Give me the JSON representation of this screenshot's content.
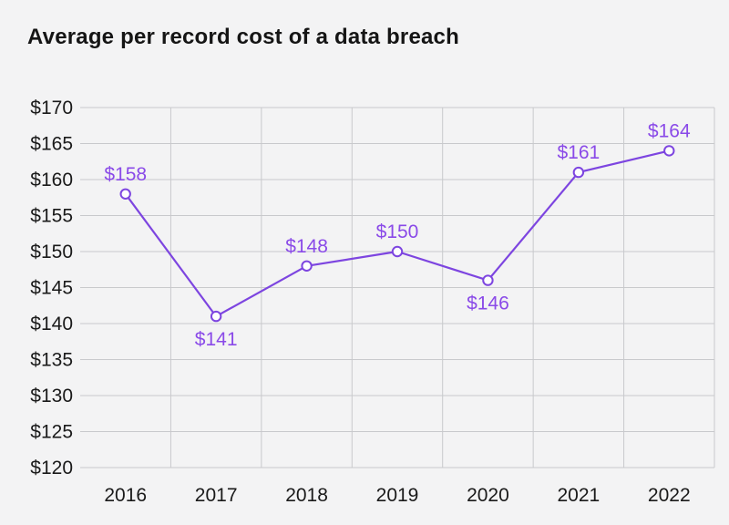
{
  "chart_data": {
    "type": "line",
    "title": "Average per record cost of a data breach",
    "xlabel": "",
    "ylabel": "",
    "categories": [
      "2016",
      "2017",
      "2018",
      "2019",
      "2020",
      "2021",
      "2022"
    ],
    "series": [
      {
        "name": "Average per record cost of a data breach (USD)",
        "values": [
          158,
          141,
          148,
          150,
          146,
          161,
          164
        ],
        "data_labels": [
          "$158",
          "$141",
          "$148",
          "$150",
          "$146",
          "$161",
          "$164"
        ],
        "label_positions": [
          "above",
          "below",
          "above",
          "above",
          "below",
          "above",
          "above"
        ]
      }
    ],
    "ylim": [
      120,
      170
    ],
    "y_ticks": [
      120,
      125,
      130,
      135,
      140,
      145,
      150,
      155,
      160,
      165,
      170
    ],
    "y_tick_labels": [
      "$120",
      "$125",
      "$130",
      "$135",
      "$140",
      "$145",
      "$150",
      "$155",
      "$160",
      "$165",
      "$170"
    ],
    "grid": "horizontal lines at each y tick; vertical lines at category band boundaries (no left edge line)",
    "legend_position": "none",
    "marker": "open-circle",
    "colors": {
      "background": "#f3f3f4",
      "line": "#7d45e0",
      "marker_fill": "#fdfdfe",
      "data_label": "#8a4ae8",
      "grid": "#c8c9cc",
      "axis_text": "#1a1a1a",
      "title_text": "#151515"
    }
  }
}
